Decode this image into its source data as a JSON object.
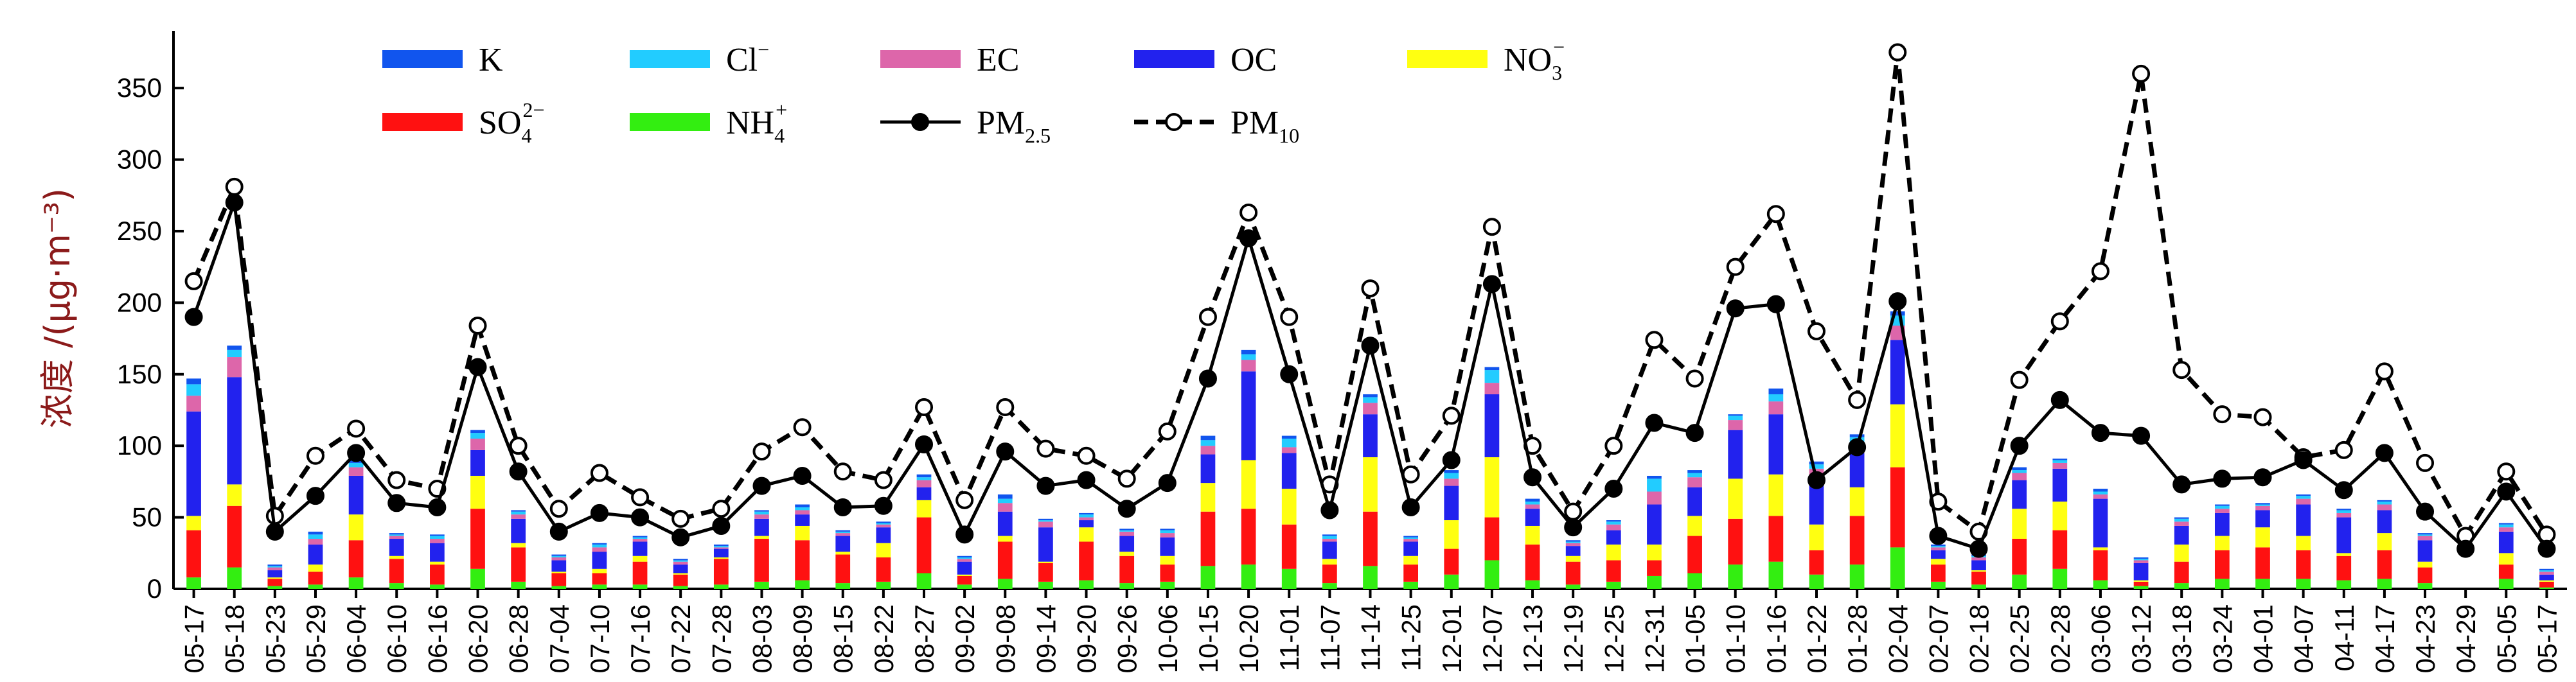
{
  "chart_data": {
    "type": "bar",
    "stacked": true,
    "ylabel": "浓度 /(μg·m⁻³)",
    "ylim": [
      0,
      390
    ],
    "yticks": [
      0,
      50,
      100,
      150,
      200,
      250,
      300,
      350
    ],
    "categories": [
      "05-17",
      "05-18",
      "05-23",
      "05-29",
      "06-04",
      "06-10",
      "06-16",
      "06-20",
      "06-28",
      "07-04",
      "07-10",
      "07-16",
      "07-22",
      "07-28",
      "08-03",
      "08-09",
      "08-15",
      "08-22",
      "08-27",
      "09-02",
      "09-08",
      "09-14",
      "09-20",
      "09-26",
      "10-06",
      "10-15",
      "10-20",
      "11-01",
      "11-07",
      "11-14",
      "11-25",
      "12-01",
      "12-07",
      "12-13",
      "12-19",
      "12-25",
      "12-31",
      "01-05",
      "01-10",
      "01-16",
      "01-22",
      "01-28",
      "02-04",
      "02-07",
      "02-18",
      "02-25",
      "02-28",
      "03-06",
      "03-12",
      "03-18",
      "03-24",
      "04-01",
      "04-07",
      "04-11",
      "04-17",
      "04-23",
      "04-29",
      "05-05",
      "05-17"
    ],
    "legend": {
      "placement": "top-left",
      "items": [
        {
          "key": "K",
          "label": "K",
          "sup": "",
          "sub": "",
          "kind": "bar"
        },
        {
          "key": "Cl",
          "label": "Cl",
          "sup": "−",
          "sub": "",
          "kind": "bar"
        },
        {
          "key": "EC",
          "label": "EC",
          "sup": "",
          "sub": "",
          "kind": "bar"
        },
        {
          "key": "OC",
          "label": "OC",
          "sup": "",
          "sub": "",
          "kind": "bar"
        },
        {
          "key": "NO3",
          "label": "NO",
          "sup": "−",
          "sub": "3",
          "kind": "bar"
        },
        {
          "key": "SO4",
          "label": "SO",
          "sup": "2−",
          "sub": "4",
          "kind": "bar"
        },
        {
          "key": "NH4",
          "label": "NH",
          "sup": "+",
          "sub": "4",
          "kind": "bar"
        },
        {
          "key": "PM25",
          "label": "PM",
          "sup": "",
          "sub": "2.5",
          "kind": "line-solid"
        },
        {
          "key": "PM10",
          "label": "PM",
          "sup": "",
          "sub": "10",
          "kind": "line-dashed"
        }
      ]
    },
    "colors": {
      "NH4": "#33ee11",
      "SO4": "#ff1111",
      "NO3": "#ffff11",
      "OC": "#2222ee",
      "EC": "#dd66aa",
      "Cl": "#22ccff",
      "K": "#1155ee",
      "line": "#000000"
    },
    "stack_order": [
      "NH4",
      "SO4",
      "NO3",
      "OC",
      "EC",
      "Cl",
      "K"
    ],
    "series": [
      {
        "name": "NH4",
        "values": [
          8,
          15,
          2,
          3,
          8,
          4,
          3,
          14,
          5,
          2,
          3,
          3,
          2,
          3,
          5,
          6,
          4,
          5,
          11,
          3,
          7,
          5,
          6,
          4,
          5,
          16,
          17,
          14,
          4,
          16,
          5,
          10,
          20,
          6,
          3,
          5,
          9,
          11,
          17,
          19,
          10,
          17,
          29,
          5,
          3,
          10,
          14,
          6,
          2,
          4,
          7,
          7,
          7,
          6,
          7,
          4,
          0,
          7,
          1
        ]
      },
      {
        "name": "SO4",
        "values": [
          33,
          43,
          5,
          9,
          26,
          17,
          14,
          42,
          24,
          9,
          8,
          16,
          8,
          18,
          30,
          28,
          20,
          17,
          39,
          6,
          26,
          13,
          27,
          19,
          12,
          38,
          39,
          31,
          13,
          38,
          12,
          18,
          30,
          25,
          16,
          15,
          11,
          26,
          32,
          32,
          17,
          34,
          56,
          12,
          9,
          25,
          27,
          21,
          3,
          15,
          20,
          22,
          20,
          17,
          20,
          11,
          0,
          10,
          4
        ]
      },
      {
        "name": "NO3",
        "values": [
          10,
          15,
          1,
          5,
          18,
          2,
          2,
          23,
          3,
          1,
          3,
          4,
          1,
          1,
          2,
          10,
          2,
          10,
          12,
          1,
          4,
          1,
          10,
          3,
          6,
          20,
          34,
          25,
          4,
          38,
          6,
          20,
          42,
          13,
          4,
          11,
          11,
          14,
          28,
          29,
          18,
          20,
          44,
          4,
          1,
          21,
          20,
          2,
          1,
          12,
          10,
          14,
          10,
          2,
          12,
          4,
          0,
          8,
          1
        ]
      },
      {
        "name": "OC",
        "values": [
          73,
          75,
          5,
          14,
          27,
          12,
          13,
          18,
          17,
          8,
          12,
          10,
          6,
          6,
          12,
          8,
          11,
          11,
          9,
          9,
          17,
          24,
          5,
          11,
          13,
          20,
          62,
          25,
          12,
          30,
          10,
          24,
          44,
          12,
          7,
          10,
          28,
          20,
          34,
          42,
          34,
          24,
          45,
          6,
          7,
          20,
          23,
          34,
          12,
          13,
          16,
          12,
          22,
          25,
          16,
          15,
          0,
          15,
          4
        ]
      },
      {
        "name": "EC",
        "values": [
          11,
          14,
          2,
          4,
          6,
          2,
          3,
          8,
          3,
          2,
          3,
          2,
          2,
          1,
          3,
          3,
          2,
          2,
          5,
          2,
          6,
          4,
          2,
          3,
          3,
          6,
          8,
          4,
          2,
          8,
          2,
          5,
          8,
          3,
          2,
          4,
          9,
          7,
          7,
          9,
          5,
          6,
          10,
          2,
          2,
          5,
          4,
          3,
          2,
          3,
          3,
          3,
          4,
          3,
          4,
          3,
          0,
          3,
          2
        ]
      },
      {
        "name": "Cl",
        "values": [
          8,
          5,
          1,
          3,
          3,
          1,
          2,
          4,
          2,
          1,
          2,
          1,
          1,
          1,
          2,
          2,
          1,
          1,
          2,
          1,
          3,
          1,
          2,
          1,
          2,
          4,
          4,
          6,
          2,
          4,
          1,
          4,
          9,
          2,
          1,
          2,
          9,
          3,
          3,
          5,
          3,
          5,
          7,
          1,
          1,
          2,
          2,
          2,
          1,
          2,
          2,
          1,
          2,
          2,
          2,
          1,
          0,
          2,
          1
        ]
      },
      {
        "name": "K",
        "values": [
          4,
          3,
          1,
          2,
          2,
          1,
          1,
          2,
          1,
          1,
          1,
          1,
          1,
          1,
          1,
          2,
          1,
          1,
          2,
          1,
          3,
          1,
          1,
          1,
          1,
          3,
          3,
          2,
          1,
          2,
          1,
          2,
          2,
          2,
          1,
          1,
          2,
          2,
          1,
          4,
          2,
          2,
          3,
          1,
          1,
          2,
          1,
          2,
          1,
          1,
          1,
          1,
          1,
          1,
          1,
          1,
          0,
          1,
          1
        ]
      }
    ],
    "lines": [
      {
        "name": "PM25",
        "style": "solid",
        "values": [
          190,
          270,
          40,
          65,
          95,
          60,
          57,
          155,
          82,
          40,
          53,
          50,
          36,
          44,
          72,
          79,
          57,
          58,
          101,
          38,
          96,
          72,
          76,
          56,
          74,
          147,
          245,
          150,
          55,
          170,
          57,
          90,
          213,
          78,
          43,
          70,
          116,
          109,
          196,
          199,
          76,
          99,
          201,
          37,
          28,
          100,
          132,
          109,
          107,
          73,
          77,
          78,
          90,
          69,
          95,
          54,
          28,
          68,
          28
        ]
      },
      {
        "name": "PM10",
        "style": "dashed",
        "values": [
          215,
          281,
          51,
          93,
          112,
          76,
          70,
          184,
          100,
          56,
          81,
          64,
          49,
          56,
          96,
          113,
          82,
          76,
          127,
          62,
          127,
          98,
          93,
          77,
          110,
          190,
          263,
          190,
          73,
          210,
          80,
          121,
          253,
          100,
          54,
          100,
          174,
          147,
          225,
          262,
          180,
          132,
          375,
          61,
          40,
          146,
          187,
          222,
          360,
          153,
          122,
          120,
          92,
          97,
          152,
          88,
          37,
          82,
          38
        ]
      }
    ]
  }
}
